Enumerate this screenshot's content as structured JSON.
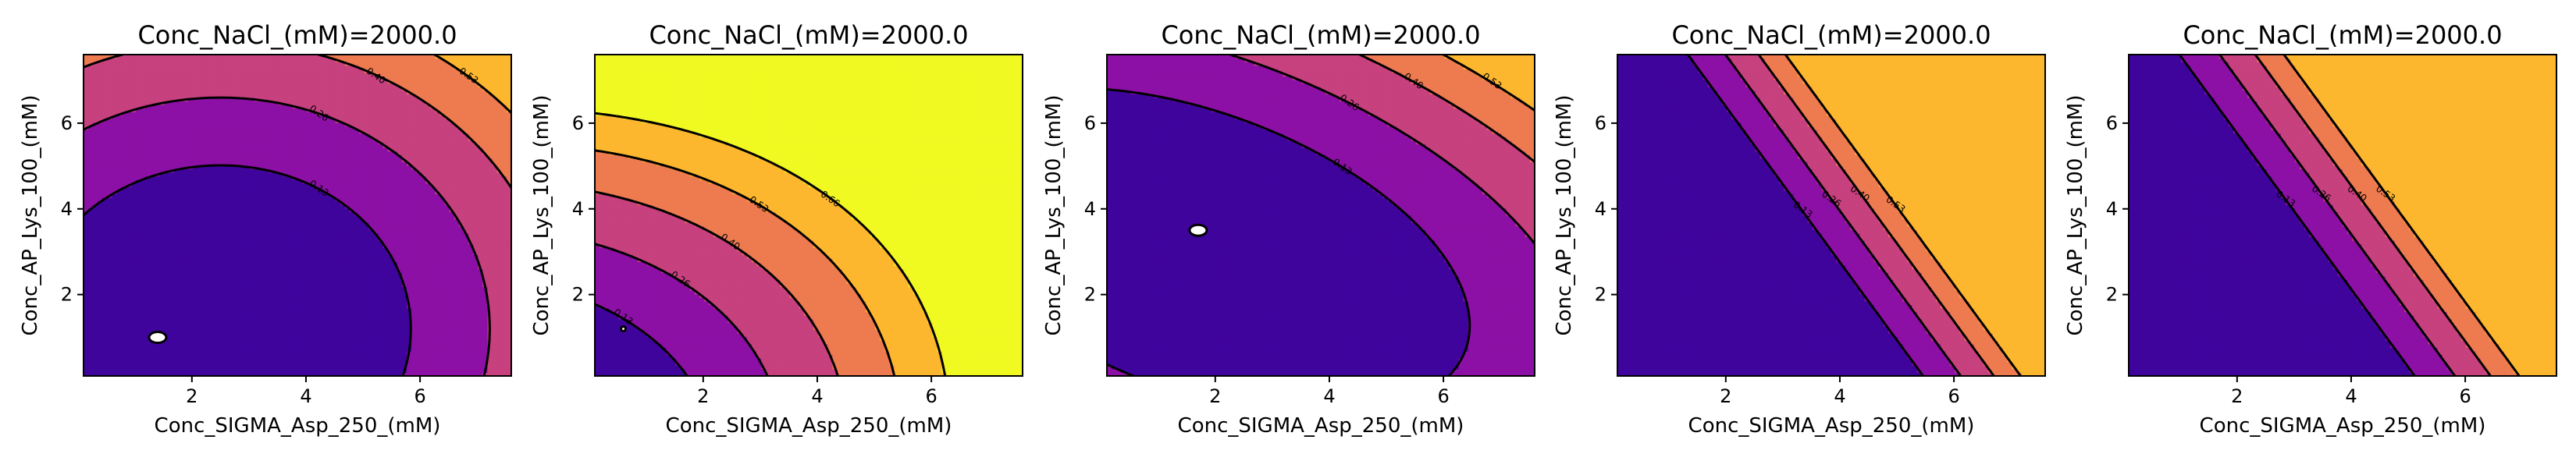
{
  "chart_data": [
    {
      "type": "contour",
      "title": "Conc_NaCl_(mM)=2000.0",
      "xlabel": "Conc_SIGMA_Asp_250_(mM)",
      "ylabel": "Conc_AP_Lys_100_(mM)",
      "xlim": [
        0.1,
        7.6
      ],
      "ylim": [
        0.1,
        7.6
      ],
      "xticks": [
        "2",
        "4",
        "6"
      ],
      "yticks": [
        "2",
        "4",
        "6"
      ],
      "min_marker": [
        1.4,
        1.0
      ],
      "levels": [
        {
          "label": "0.13",
          "value": 0.13,
          "color": "#8c10a5"
        },
        {
          "label": "0.26",
          "value": 0.26,
          "color": "#c7417e"
        },
        {
          "label": "0.40",
          "value": 0.4,
          "color": "#ee7a50"
        },
        {
          "label": "0.53",
          "value": 0.53,
          "color": "#fdb72e"
        }
      ],
      "labeled_levels": [
        "0.13",
        "0.26",
        "0.40",
        "0.53"
      ]
    },
    {
      "type": "contour",
      "title": "Conc_NaCl_(mM)=2000.0",
      "xlabel": "Conc_SIGMA_Asp_250_(mM)",
      "ylabel": "Conc_AP_Lys_100_(mM)",
      "xlim": [
        0.1,
        7.6
      ],
      "ylim": [
        0.1,
        7.6
      ],
      "xticks": [
        "2",
        "4",
        "6"
      ],
      "yticks": [
        "2",
        "4",
        "6"
      ],
      "min_marker": [
        0.6,
        1.2
      ],
      "levels": [
        {
          "label": "0.13",
          "value": 0.13,
          "color": "#8c10a5"
        },
        {
          "label": "0.26",
          "value": 0.26,
          "color": "#c7417e"
        },
        {
          "label": "0.40",
          "value": 0.4,
          "color": "#ee7a50"
        },
        {
          "label": "0.53",
          "value": 0.53,
          "color": "#fdb72e"
        },
        {
          "label": "0.66",
          "value": 0.66,
          "color": "#f0f921"
        }
      ],
      "labeled_levels": [
        "0.13",
        "0.26",
        "0.40",
        "0.53",
        "0.66"
      ]
    },
    {
      "type": "contour",
      "title": "Conc_NaCl_(mM)=2000.0",
      "xlabel": "Conc_SIGMA_Asp_250_(mM)",
      "ylabel": "Conc_AP_Lys_100_(mM)",
      "xlim": [
        0.1,
        7.6
      ],
      "ylim": [
        0.1,
        7.6
      ],
      "xticks": [
        "2",
        "4",
        "6"
      ],
      "yticks": [
        "2",
        "4",
        "6"
      ],
      "min_marker": [
        1.7,
        3.5
      ],
      "levels": [
        {
          "label": "0.13",
          "value": 0.13,
          "color": "#8c10a5"
        },
        {
          "label": "0.26",
          "value": 0.26,
          "color": "#c7417e"
        },
        {
          "label": "0.40",
          "value": 0.4,
          "color": "#ee7a50"
        },
        {
          "label": "0.53",
          "value": 0.53,
          "color": "#fdb72e"
        }
      ],
      "labeled_levels": [
        "0.13",
        "0.26",
        "0.40",
        "0.53"
      ]
    },
    {
      "type": "contour",
      "title": "Conc_NaCl_(mM)=2000.0",
      "xlabel": "Conc_SIGMA_Asp_250_(mM)",
      "ylabel": "Conc_AP_Lys_100_(mM)",
      "xlim": [
        0.1,
        7.6
      ],
      "ylim": [
        0.1,
        7.6
      ],
      "xticks": [
        "2",
        "4",
        "6"
      ],
      "yticks": [
        "2",
        "4",
        "6"
      ],
      "levels": [
        {
          "label": "0.13",
          "value": 0.13,
          "color": "#8c10a5"
        },
        {
          "label": "0.26",
          "value": 0.26,
          "color": "#c7417e"
        },
        {
          "label": "0.40",
          "value": 0.4,
          "color": "#ee7a50"
        },
        {
          "label": "0.53",
          "value": 0.53,
          "color": "#fdb72e"
        }
      ],
      "labeled_levels": [
        "0.13",
        "0.26",
        "0.40",
        "0.53"
      ]
    },
    {
      "type": "contour",
      "title": "Conc_NaCl_(mM)=2000.0",
      "xlabel": "Conc_SIGMA_Asp_250_(mM)",
      "ylabel": "Conc_AP_Lys_100_(mM)",
      "xlim": [
        0.1,
        7.6
      ],
      "ylim": [
        0.1,
        7.6
      ],
      "xticks": [
        "2",
        "4",
        "6"
      ],
      "yticks": [
        "2",
        "4",
        "6"
      ],
      "levels": [
        {
          "label": "0.13",
          "value": 0.13,
          "color": "#8c10a5"
        },
        {
          "label": "0.26",
          "value": 0.26,
          "color": "#c7417e"
        },
        {
          "label": "0.40",
          "value": 0.4,
          "color": "#ee7a50"
        },
        {
          "label": "0.53",
          "value": 0.53,
          "color": "#fdb72e"
        }
      ],
      "labeled_levels": [
        "0.13",
        "0.26",
        "0.40",
        "0.53"
      ]
    }
  ],
  "colors": {
    "base": "#3f049c",
    "line": "#000000",
    "background": "#ffffff"
  }
}
